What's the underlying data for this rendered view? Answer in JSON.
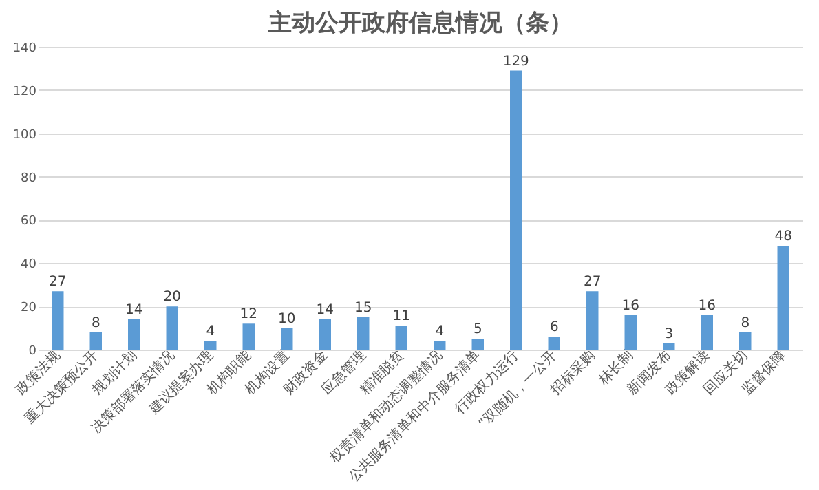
{
  "chart_data": {
    "type": "bar",
    "title": "主动公开政府信息情况（条）",
    "categories": [
      "政策法规",
      "重大决策预公开",
      "规划计划",
      "决策部署落实情况",
      "建议提案办理",
      "机构职能",
      "机构设置",
      "财政资金",
      "应急管理",
      "精准脱贫",
      "权责清单和动态调整情况",
      "公共服务清单和中介服务清单",
      "行政权力运行",
      "“双随机，一公开",
      "招标采购",
      "林长制",
      "新闻发布",
      "政策解读",
      "回应关切",
      "监督保障"
    ],
    "values": [
      27,
      8,
      14,
      20,
      4,
      12,
      10,
      14,
      15,
      11,
      4,
      5,
      129,
      6,
      27,
      16,
      3,
      16,
      8,
      48
    ],
    "color": "#5b9bd5",
    "ylim": [
      0,
      140
    ],
    "yticks": [
      0,
      20,
      40,
      60,
      80,
      100,
      120,
      140
    ],
    "grid": "y",
    "data_labels": true
  }
}
